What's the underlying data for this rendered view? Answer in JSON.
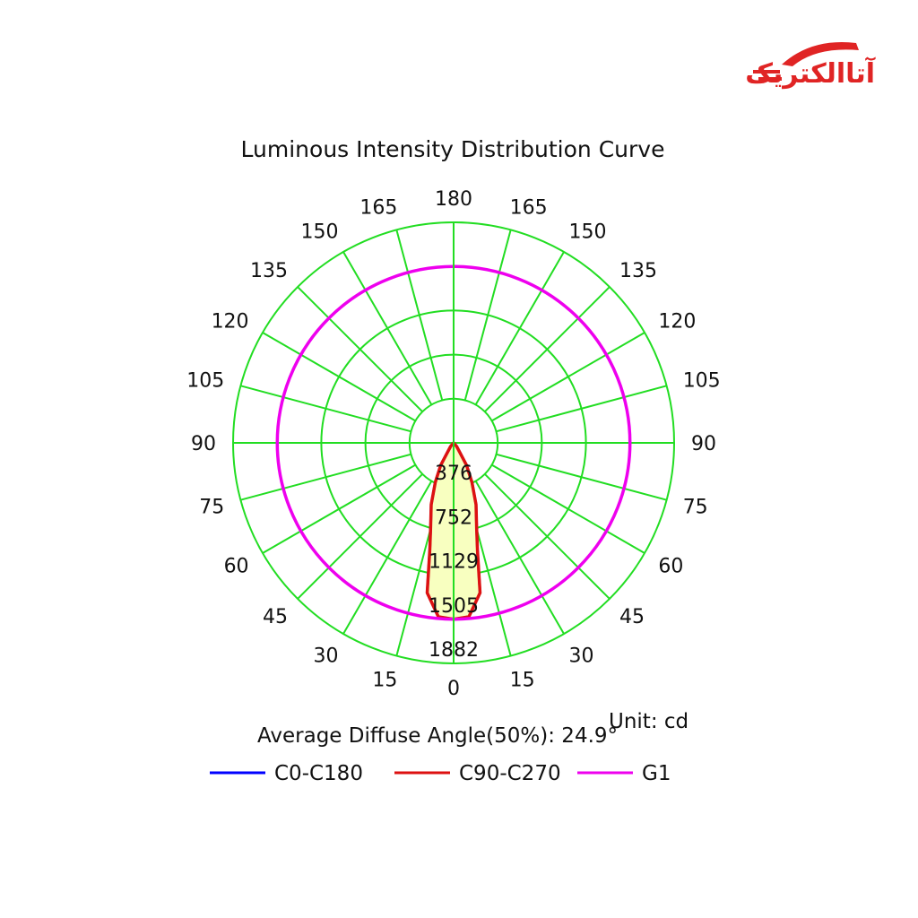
{
  "brand": {
    "logo_text": "آتاالکتریک"
  },
  "chart_data": {
    "type": "polar",
    "title": "Luminous Intensity Distribution Curve",
    "radial_ticks": [
      "376",
      "752",
      "1129",
      "1505",
      "1882"
    ],
    "radial_max": 1882,
    "angle_labels_left": [
      "0",
      "15",
      "30",
      "45",
      "60",
      "75",
      "90",
      "105",
      "120",
      "135",
      "150",
      "165",
      "180"
    ],
    "angle_labels_right": [
      "15",
      "30",
      "45",
      "60",
      "75",
      "90",
      "105",
      "120",
      "135",
      "150",
      "165"
    ],
    "diffuse_angle_text": "Average Diffuse Angle(50%): 24.9°",
    "unit_text": "Unit: cd",
    "colors": {
      "grid": "#22dd22",
      "fill": "#f8ffc0",
      "c0": "#0000ff",
      "c90": "#dd1111",
      "g1": "#ee00ee"
    },
    "series": [
      {
        "name": "C0-C180",
        "color": "#0000ff",
        "angles": [
          0,
          5,
          10,
          12.5,
          15,
          20,
          25,
          30,
          40,
          90
        ],
        "values": [
          1505,
          1490,
          1300,
          940,
          760,
          560,
          370,
          220,
          40,
          0
        ]
      },
      {
        "name": "C90-C270",
        "color": "#dd1111",
        "angles": [
          0,
          5,
          10,
          12.5,
          15,
          20,
          25,
          30,
          40,
          90
        ],
        "values": [
          1505,
          1490,
          1300,
          940,
          760,
          560,
          370,
          220,
          40,
          0
        ]
      },
      {
        "name": "G1",
        "color": "#ee00ee",
        "angles": [
          0,
          180
        ],
        "values": [
          1505,
          1505
        ]
      }
    ]
  }
}
